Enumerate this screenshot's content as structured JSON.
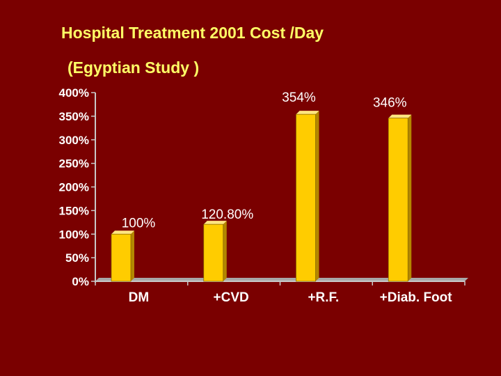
{
  "chart_data": {
    "type": "bar",
    "title": "Hospital Treatment 2001 Cost /Day",
    "subtitle": "(Egyptian Study )",
    "categories": [
      "DM",
      "+CVD",
      "+R.F.",
      "+Diab. Foot"
    ],
    "values": [
      100,
      120.8,
      354,
      346
    ],
    "data_labels": [
      "100%",
      "120.80%",
      "354%",
      "346%"
    ],
    "ylim": [
      0,
      400
    ],
    "yticks": [
      0,
      50,
      100,
      150,
      200,
      250,
      300,
      350,
      400
    ],
    "ytick_labels": [
      "0%",
      "50%",
      "100%",
      "150%",
      "200%",
      "250%",
      "300%",
      "350%",
      "400%"
    ],
    "xlabel": "",
    "ylabel": "",
    "grid": false,
    "bar_color": "#ffcc00",
    "background_color": "#7a0000",
    "title_color": "#ffff66"
  }
}
